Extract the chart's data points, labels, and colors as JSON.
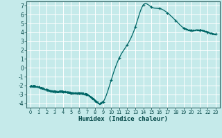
{
  "title": "",
  "xlabel": "Humidex (Indice chaleur)",
  "ylabel": "",
  "xlim": [
    -0.5,
    23.5
  ],
  "ylim": [
    -4.5,
    7.5
  ],
  "yticks": [
    -4,
    -3,
    -2,
    -1,
    0,
    1,
    2,
    3,
    4,
    5,
    6,
    7
  ],
  "xticks": [
    0,
    1,
    2,
    3,
    4,
    5,
    6,
    7,
    8,
    9,
    10,
    11,
    12,
    13,
    14,
    15,
    16,
    17,
    18,
    19,
    20,
    21,
    22,
    23
  ],
  "background_color": "#c5eaea",
  "grid_color": "#ffffff",
  "line_color": "#006666",
  "marker_color": "#006666",
  "marker_x": [
    0,
    1,
    2,
    3,
    4,
    5,
    6,
    7,
    8,
    9,
    10,
    11,
    12,
    13,
    14,
    15,
    16,
    17,
    18,
    19,
    20,
    21,
    22,
    23
  ],
  "marker_y": [
    -2.1,
    -2.2,
    -2.5,
    -2.7,
    -2.7,
    -2.85,
    -2.9,
    -3.05,
    -3.7,
    -3.85,
    -1.4,
    1.1,
    2.6,
    4.6,
    7.1,
    6.85,
    6.7,
    6.2,
    5.35,
    4.5,
    4.2,
    4.25,
    4.0,
    3.8
  ]
}
